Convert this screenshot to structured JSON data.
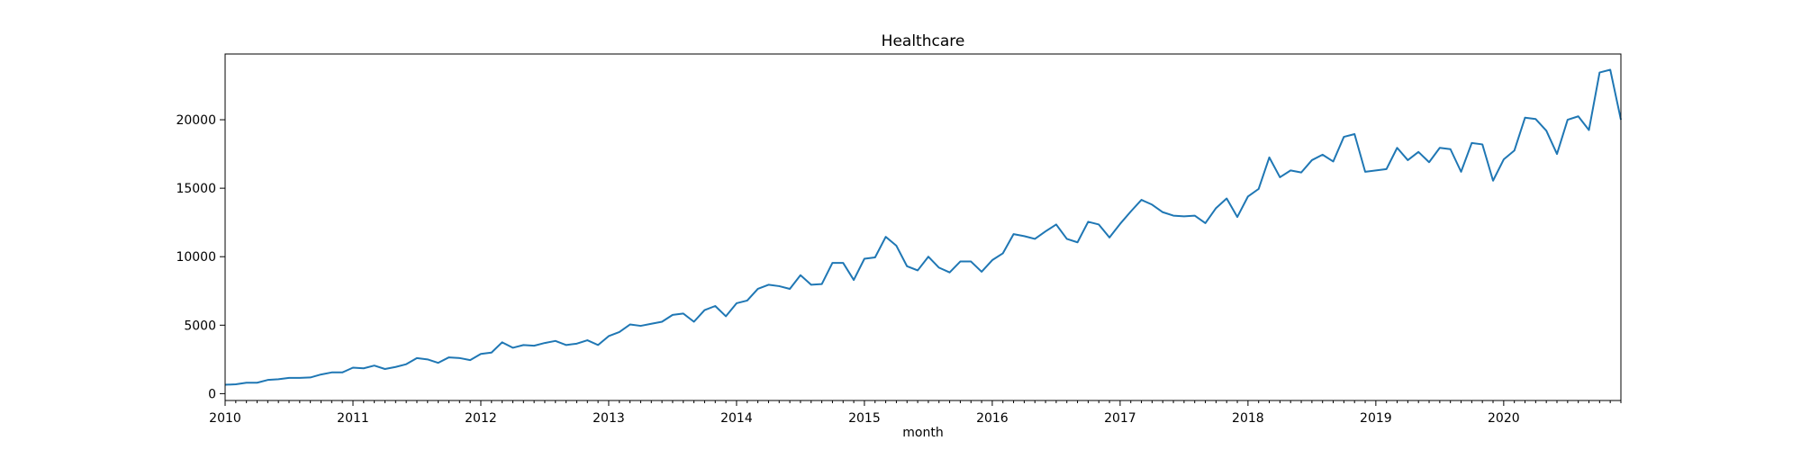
{
  "chart_data": {
    "type": "line",
    "title": "Healthcare",
    "xlabel": "month",
    "ylabel": "",
    "x_start": "2010-01",
    "x_end": "2020-12",
    "x_ticks": [
      "2010",
      "2011",
      "2012",
      "2013",
      "2014",
      "2015",
      "2016",
      "2017",
      "2018",
      "2019",
      "2020"
    ],
    "y_ticks": [
      0,
      5000,
      10000,
      15000,
      20000
    ],
    "ylim": [
      -500,
      24800
    ],
    "grid": false,
    "legend": "none",
    "series": [
      {
        "color": "#1f77b4",
        "values": [
          650,
          680,
          800,
          800,
          1000,
          1050,
          1150,
          1150,
          1180,
          1400,
          1550,
          1550,
          1900,
          1850,
          2050,
          1800,
          1950,
          2150,
          2600,
          2500,
          2250,
          2650,
          2600,
          2450,
          2900,
          3000,
          3750,
          3350,
          3550,
          3500,
          3700,
          3850,
          3550,
          3650,
          3900,
          3550,
          4200,
          4500,
          5050,
          4950,
          5100,
          5250,
          5750,
          5850,
          5250,
          6100,
          6400,
          5650,
          6600,
          6800,
          7650,
          7950,
          7850,
          7650,
          8650,
          7950,
          8000,
          9550,
          9550,
          8300,
          9850,
          9950,
          11450,
          10800,
          9300,
          9000,
          10000,
          9200,
          8850,
          9650,
          9650,
          8900,
          9750,
          10250,
          11650,
          11500,
          11300,
          11850,
          12350,
          11300,
          11050,
          12550,
          12350,
          11400,
          12400,
          13300,
          14150,
          13800,
          13250,
          13000,
          12950,
          13000,
          12450,
          13550,
          14250,
          12900,
          14400,
          14950,
          17250,
          15800,
          16300,
          16150,
          17050,
          17450,
          16950,
          18750,
          18950,
          16200,
          16300,
          16400,
          17950,
          17050,
          17650,
          16900,
          17950,
          17850,
          16200,
          18300,
          18200,
          15550,
          17100,
          17750,
          20150,
          20050,
          19200,
          17500,
          20000,
          20250,
          19250,
          23450,
          23650,
          20000
        ]
      }
    ]
  }
}
